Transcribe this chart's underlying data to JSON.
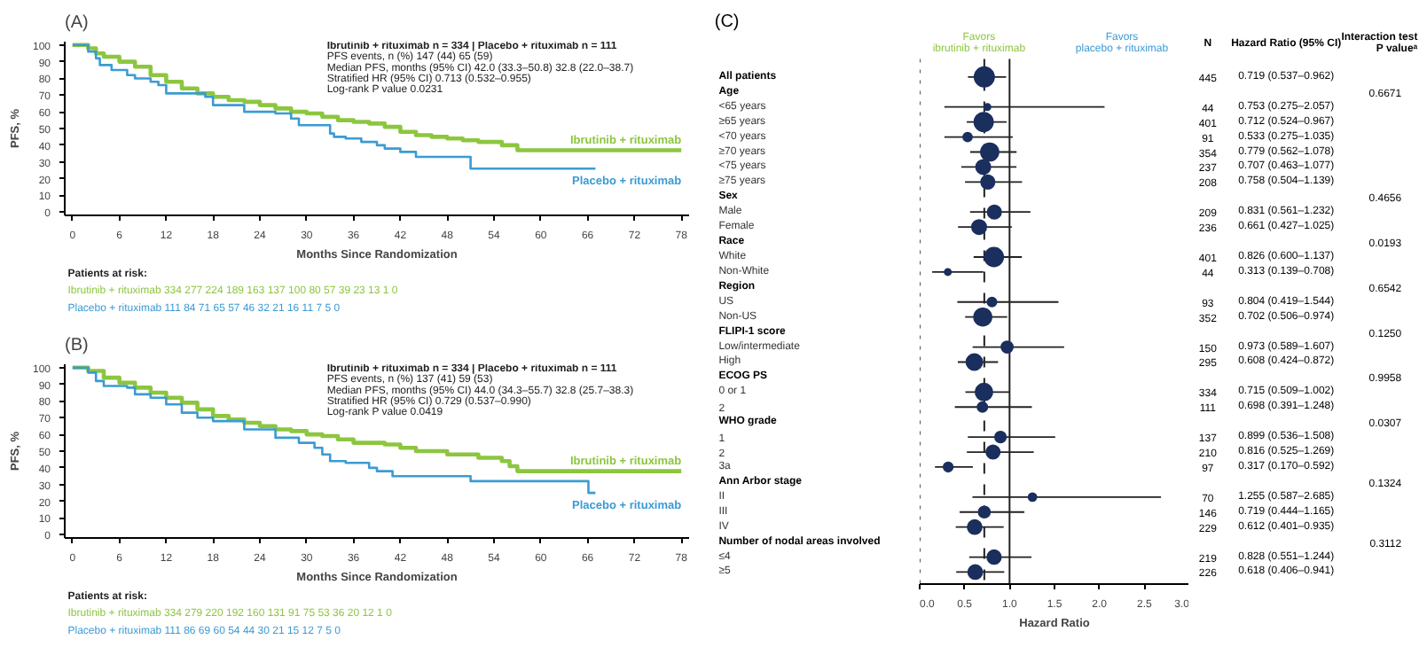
{
  "chart_data": [
    {
      "type": "step",
      "title": "(A)",
      "xlabel": "Months Since Randomization",
      "ylabel": "PFS, %",
      "xlim": [
        -1,
        79
      ],
      "ylim": [
        -2,
        102
      ],
      "xticks": [
        0,
        6,
        12,
        18,
        24,
        30,
        36,
        42,
        48,
        54,
        60,
        66,
        72,
        78
      ],
      "yticks": [
        0,
        10,
        20,
        30,
        40,
        50,
        60,
        70,
        80,
        90,
        100
      ],
      "grid": false,
      "series": [
        {
          "name": "Ibrutinib + rituximab",
          "color": "#8cc63f",
          "x": [
            0,
            2,
            3,
            4,
            6,
            8,
            10,
            12,
            14,
            16,
            18,
            20,
            22,
            24,
            26,
            28,
            30,
            32,
            34,
            36,
            38,
            40,
            42,
            44,
            46,
            48,
            50,
            52,
            55,
            57,
            78
          ],
          "values": [
            100,
            98,
            95,
            93,
            90,
            87,
            82,
            78,
            74,
            71,
            69,
            67,
            66,
            64,
            62,
            60,
            59,
            57,
            55,
            54,
            53,
            51,
            48,
            46,
            45,
            44,
            43,
            42,
            40,
            37,
            37
          ]
        },
        {
          "name": "Placebo + rituximab",
          "color": "#3b9bd3",
          "x": [
            0,
            2,
            3,
            3.5,
            5,
            7,
            8,
            10,
            11,
            12,
            17,
            18,
            21,
            22,
            26,
            28,
            29,
            33,
            33.5,
            35,
            37,
            39,
            40,
            42,
            44,
            50,
            51,
            67
          ],
          "values": [
            100,
            96,
            92,
            88,
            85,
            82,
            80,
            78,
            76,
            71,
            69,
            64,
            64,
            60,
            59,
            56,
            52,
            47,
            45,
            44,
            42,
            40,
            38,
            36,
            33,
            33,
            26,
            26
          ]
        }
      ],
      "annotations": [
        "Ibrutinib + rituximab n = 334   |   Placebo + rituximab n = 111",
        "PFS events, n (%)   147 (44)   65 (59)",
        "Median PFS, months (95% CI)   42.0 (33.3–50.8)   32.8 (22.0–38.7)",
        "Stratified HR (95% CI)   0.713 (0.532–0.955)",
        "Log-rank P value   0.0231",
        "Patients at risk:",
        "Ibrutinib + rituximab  334  277  224  189  163  137  100  80  57  39  23  13  1  0",
        "Placebo + rituximab  111  84  71  65  57  46  32  21  16  11  7  5  0"
      ]
    },
    {
      "type": "step",
      "title": "(B)",
      "xlabel": "Months Since Randomization",
      "ylabel": "PFS, %",
      "xlim": [
        -1,
        79
      ],
      "ylim": [
        -2,
        102
      ],
      "xticks": [
        0,
        6,
        12,
        18,
        24,
        30,
        36,
        42,
        48,
        54,
        60,
        66,
        72,
        78
      ],
      "yticks": [
        0,
        10,
        20,
        30,
        40,
        50,
        60,
        70,
        80,
        90,
        100
      ],
      "grid": false,
      "series": [
        {
          "name": "Ibrutinib + rituximab",
          "color": "#8cc63f",
          "x": [
            0,
            2,
            4,
            6,
            8,
            10,
            12,
            14,
            16,
            18,
            20,
            22,
            24,
            26,
            28,
            30,
            32,
            34,
            36,
            40,
            42,
            44,
            48,
            52,
            55,
            56,
            57,
            78
          ],
          "values": [
            100,
            98,
            94,
            91,
            88,
            85,
            82,
            79,
            75,
            71,
            69,
            67,
            65,
            63,
            62,
            60,
            59,
            57,
            55,
            54,
            52,
            50,
            48,
            46,
            44,
            41,
            38,
            38
          ]
        },
        {
          "name": "Placebo + rituximab",
          "color": "#3b9bd3",
          "x": [
            0,
            2,
            3,
            4,
            7,
            8,
            10,
            12,
            14,
            16,
            18,
            22,
            26,
            29,
            31,
            32,
            33,
            35,
            38,
            39,
            41,
            44,
            50,
            51,
            66,
            66.1,
            67
          ],
          "values": [
            100,
            97,
            92,
            89,
            88,
            84,
            82,
            78,
            73,
            70,
            68,
            63,
            58,
            55,
            52,
            48,
            44,
            43,
            40,
            38,
            35,
            35,
            35,
            32,
            32,
            25,
            25
          ]
        }
      ],
      "annotations": [
        "Ibrutinib + rituximab n = 334   |   Placebo + rituximab n = 111",
        "PFS events, n (%)   137 (41)   59 (53)",
        "Median PFS, months (95% CI)   44.0 (34.3–55.7)   32.8 (25.7–38.3)",
        "Stratified HR (95% CI)   0.729 (0.537–0.990)",
        "Log-rank P value   0.0419",
        "Patients at risk:",
        "Ibrutinib + rituximab  334  279  220  192  160  131  91  75  53  36  20  12  1  0",
        "Placebo + rituximab  111  86  69  60  54  44  30  21  15  12  7  5  0"
      ]
    },
    {
      "type": "bubble",
      "orientation": "horizontal",
      "title": "(C)",
      "xlabel": "Hazard Ratio",
      "xlim": [
        0,
        3
      ],
      "xticks": [
        {
          "value": 0,
          "label": "0.0"
        },
        {
          "value": 0.5,
          "label": "0.5"
        },
        {
          "value": 1,
          "label": "1.0"
        },
        {
          "value": 1.5,
          "label": "1.5"
        },
        {
          "value": 2,
          "label": "2.0"
        },
        {
          "value": 2.5,
          "label": "2.5"
        },
        {
          "value": 3,
          "label": "3.0"
        }
      ],
      "color": "#1b2f5e",
      "grid": false,
      "categories": [
        "All patients",
        "Age",
        "<65 years",
        "≥65 years",
        "<70 years",
        "≥70 years",
        "<75 years",
        "≥75 years",
        "Sex",
        "Male",
        "Female",
        "Race",
        "White",
        "Non-White",
        "Region",
        "US",
        "Non-US",
        "FLIPI-1 score",
        "Low/intermediate",
        "High",
        "ECOG PS",
        "0 or 1",
        "2",
        "WHO grade",
        "1",
        "2",
        "3a",
        "Ann Arbor stage",
        "II",
        "III",
        "IV",
        "Number of nodal areas involved",
        "≤4",
        "≥5"
      ],
      "values": [
        0.719,
        null,
        0.753,
        0.712,
        0.533,
        0.779,
        0.707,
        0.758,
        null,
        0.831,
        0.661,
        null,
        0.826,
        0.313,
        null,
        0.804,
        0.702,
        null,
        0.973,
        0.608,
        null,
        0.715,
        0.698,
        null,
        0.899,
        0.816,
        0.317,
        null,
        1.255,
        0.719,
        0.612,
        null,
        0.828,
        0.618
      ],
      "sizes": [
        1,
        null,
        0.1,
        0.9,
        0.2,
        0.8,
        0.53,
        0.47,
        null,
        0.47,
        0.53,
        null,
        0.9,
        0.1,
        null,
        0.21,
        0.79,
        null,
        0.34,
        0.66,
        null,
        0.75,
        0.25,
        null,
        0.31,
        0.47,
        0.22,
        null,
        0.16,
        0.33,
        0.51,
        null,
        0.49,
        0.51
      ],
      "errors": [
        [
          0.537,
          0.962
        ],
        null,
        [
          0.275,
          2.057
        ],
        [
          0.524,
          0.967
        ],
        [
          0.275,
          1.035
        ],
        [
          0.562,
          1.078
        ],
        [
          0.463,
          1.077
        ],
        [
          0.504,
          1.139
        ],
        null,
        [
          0.561,
          1.232
        ],
        [
          0.427,
          1.025
        ],
        null,
        [
          0.6,
          1.137
        ],
        [
          0.139,
          0.708
        ],
        null,
        [
          0.419,
          1.544
        ],
        [
          0.506,
          0.974
        ],
        null,
        [
          0.589,
          1.607
        ],
        [
          0.424,
          0.872
        ],
        null,
        [
          0.509,
          1.002
        ],
        [
          0.391,
          1.248
        ],
        null,
        [
          0.536,
          1.508
        ],
        [
          0.525,
          1.269
        ],
        [
          0.17,
          0.592
        ],
        null,
        [
          0.587,
          2.685
        ],
        [
          0.444,
          1.165
        ],
        [
          0.401,
          0.935
        ],
        null,
        [
          0.551,
          1.244
        ],
        [
          0.406,
          0.941
        ]
      ],
      "value_labels": [
        "0.719 (0.537–0.962)",
        null,
        "0.753 (0.275–2.057)",
        "0.712 (0.524–0.967)",
        "0.533 (0.275–1.035)",
        "0.779 (0.562–1.078)",
        "0.707 (0.463–1.077)",
        "0.758 (0.504–1.139)",
        null,
        "0.831 (0.561–1.232)",
        "0.661 (0.427–1.025)",
        null,
        "0.826 (0.600–1.137)",
        "0.313 (0.139–0.708)",
        null,
        "0.804 (0.419–1.544)",
        "0.702 (0.506–0.974)",
        null,
        "0.973 (0.589–1.607)",
        "0.608 (0.424–0.872)",
        null,
        "0.715 (0.509–1.002)",
        "0.698 (0.391–1.248)",
        null,
        "0.899 (0.536–1.508)",
        "0.816 (0.525–1.269)",
        "0.317 (0.170–0.592)",
        null,
        "1.255 (0.587–2.685)",
        "0.719 (0.444–1.165)",
        "0.612 (0.401–0.935)",
        null,
        "0.828 (0.551–1.244)",
        "0.618 (0.406–0.941)"
      ],
      "ref_lines": [
        {
          "axis": "x",
          "value": 1,
          "line_style": "solid",
          "color": "#222222"
        },
        {
          "axis": "x",
          "value": 0.719,
          "line_style": "dashed",
          "color": "#222222"
        }
      ],
      "annotations": [
        "Favors\nibrutinib + rituximab",
        "Favors\nplacebo + rituximab",
        "N",
        "Hazard Ratio (95% CI)",
        "Interaction test\nP valueᵃ",
        "445",
        "44",
        "401",
        "91",
        "354",
        "237",
        "208",
        "209",
        "236",
        "401",
        "44",
        "93",
        "352",
        "150",
        "295",
        "334",
        "111",
        "137",
        "210",
        "97",
        "70",
        "146",
        "229",
        "219",
        "226",
        "0.6671",
        "0.4656",
        "0.0193",
        "0.6542",
        "0.1250",
        "0.9958",
        "0.0307",
        "0.1324",
        "0.3112"
      ]
    }
  ]
}
